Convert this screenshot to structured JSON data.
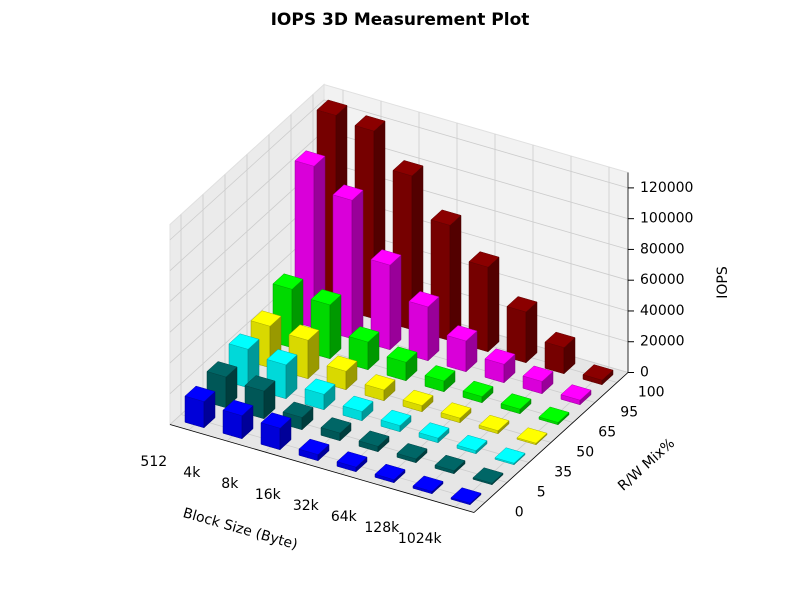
{
  "chart_data": {
    "type": "bar3d",
    "title": "IOPS 3D Measurement Plot",
    "xlabel": "Block Size (Byte)",
    "ylabel": "R/W Mix%",
    "zlabel": "IOPS",
    "categories": [
      "512",
      "4k",
      "8k",
      "16k",
      "32k",
      "64k",
      "128k",
      "1024k"
    ],
    "series": [
      {
        "name": "0",
        "color": "#0000ff",
        "values": [
          17000,
          15000,
          14000,
          4000,
          3000,
          2000,
          1500,
          1000
        ]
      },
      {
        "name": "5",
        "color": "#006666",
        "values": [
          20000,
          18000,
          8000,
          5000,
          3500,
          2500,
          2000,
          1000
        ]
      },
      {
        "name": "35",
        "color": "#00ffff",
        "values": [
          25000,
          22000,
          10000,
          6000,
          4000,
          3000,
          2000,
          1000
        ]
      },
      {
        "name": "50",
        "color": "#ffff00",
        "values": [
          27000,
          25000,
          12000,
          7000,
          4000,
          3000,
          2000,
          1000
        ]
      },
      {
        "name": "65",
        "color": "#00ff00",
        "values": [
          38000,
          35000,
          18000,
          12000,
          7000,
          4000,
          3000,
          1500
        ]
      },
      {
        "name": "95",
        "color": "#ff00ff",
        "values": [
          105000,
          90000,
          55000,
          35000,
          20000,
          12000,
          8000,
          3000
        ]
      },
      {
        "name": "100",
        "color": "#8b0000",
        "values": [
          125000,
          122000,
          100000,
          75000,
          55000,
          33000,
          17000,
          3000
        ]
      }
    ],
    "zlim": [
      0,
      130000
    ],
    "zticks": [
      0,
      20000,
      40000,
      60000,
      80000,
      100000,
      120000
    ],
    "grid": true
  }
}
